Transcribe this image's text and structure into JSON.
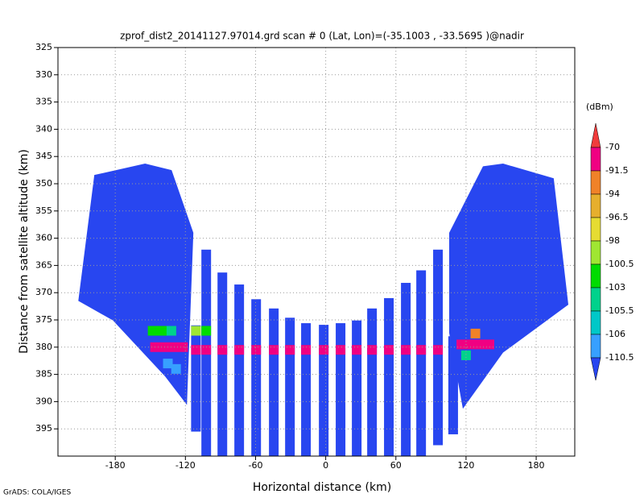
{
  "chart_data": {
    "type": "heatmap",
    "title": "zprof_dist2_20141127.97014.grd  scan # 0  (Lat, Lon)=(-35.1003 , -33.5695 )@nadir",
    "xlabel": "Horizontal distance (km)",
    "ylabel": "Distance from satellite altitude (km)",
    "footer": "GrADS: COLA/IGES",
    "xlim": [
      -229,
      213
    ],
    "ylim": [
      325,
      400
    ],
    "y_inverted": true,
    "xticks": [
      -180,
      -120,
      -60,
      0,
      60,
      120,
      180
    ],
    "yticks": [
      325,
      330,
      335,
      340,
      345,
      350,
      355,
      360,
      365,
      370,
      375,
      380,
      385,
      390,
      395
    ],
    "grid": true,
    "colorbar": {
      "unit": "(dBm)",
      "levels": [
        -70,
        -91.5,
        -94,
        -96.5,
        -98,
        -100.5,
        -103,
        -105.5,
        -106,
        -110.5
      ],
      "colors": [
        "#f03c3c",
        "#f00082",
        "#f08228",
        "#e6af2d",
        "#e6dc32",
        "#a0e632",
        "#00dc00",
        "#00d28c",
        "#00c8c8",
        "#37a0ff",
        "#2846f0"
      ]
    },
    "regions": [
      {
        "x": [
          -211.6,
          -197.9,
          -154.5,
          -131.8,
          -113.2,
          -118.7,
          -137.3,
          -182
        ],
        "y": [
          371.5,
          348.4,
          346.3,
          347.5,
          359,
          390.6,
          385.4,
          375.1
        ],
        "value": -115
      },
      {
        "x": [
          105.6,
          134.5,
          151.7,
          195,
          207.5,
          151.7,
          117.3,
          105.6
        ],
        "y": [
          359,
          346.8,
          346.3,
          349,
          372.2,
          381,
          391.3,
          377.4
        ],
        "value": -115
      }
    ],
    "beams": {
      "x": [
        -111,
        -102.2,
        -88.4,
        -74,
        -59.5,
        -44.4,
        -30.6,
        -16.9,
        -1.7,
        12.7,
        26.5,
        39.6,
        54,
        68.5,
        81.6,
        96,
        109
      ],
      "top": [
        376,
        362.1,
        366.3,
        368.5,
        371.2,
        372.9,
        374.6,
        375.6,
        375.9,
        375.6,
        375.1,
        372.9,
        371,
        368.2,
        365.9,
        362.1,
        378
      ],
      "bottom": [
        395.5,
        400,
        400,
        400,
        400,
        400,
        400,
        400,
        400,
        400,
        400,
        400,
        400,
        400,
        400,
        398,
        396
      ],
      "value": -115
    },
    "echo": {
      "x": [
        -146,
        -138,
        -130,
        -122,
        -148,
        -140,
        -132,
        -135,
        -128,
        -111,
        -102.2,
        -111,
        -102.2,
        -88.4,
        -74,
        -59.5,
        -44.4,
        -30.6,
        -16.9,
        -1.7,
        12.7,
        26.5,
        39.6,
        54,
        68.5,
        81.6,
        96,
        116,
        124,
        132,
        140,
        128,
        120
      ],
      "y": [
        380,
        380,
        380,
        380,
        377,
        377,
        377,
        383,
        384,
        377,
        377,
        380.5,
        380.5,
        380.5,
        380.5,
        380.5,
        380.5,
        380.5,
        380.5,
        380.5,
        380.5,
        380.5,
        380.5,
        380.5,
        380.5,
        380.5,
        380.5,
        379.5,
        379.5,
        379.5,
        379.5,
        377.5,
        381.5
      ],
      "values": [
        -85,
        -85,
        -85,
        -85,
        -101,
        -101,
        -104,
        -107,
        -109,
        -99,
        -101,
        -85,
        -85,
        -85,
        -85,
        -80,
        -80,
        -85,
        -75,
        -80,
        -80,
        -85,
        -85,
        -80,
        -85,
        -85,
        -85,
        -85,
        -85,
        -85,
        -85,
        -93,
        -104
      ]
    }
  }
}
